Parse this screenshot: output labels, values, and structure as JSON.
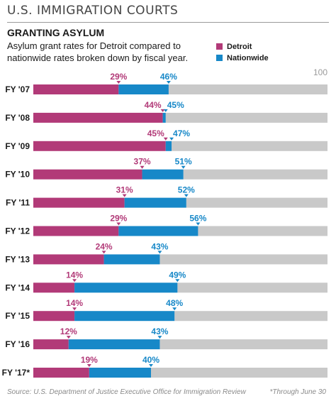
{
  "header": {
    "kicker": "U.S. IMMIGRATION COURTS",
    "title": "GRANTING ASYLUM",
    "subtitle": "Asylum grant rates for Detroit compared to nationwide rates broken down by fiscal year."
  },
  "footer": {
    "source": "Source: U.S. Department of Justice Executive Office for Immigration Review",
    "note": "*Through June 30"
  },
  "colors": {
    "detroit": "#b23a78",
    "nationwide": "#1788c8",
    "rest": "#c9c9c9",
    "max_label": "#9a9a9a"
  },
  "chart_data": {
    "type": "bar",
    "orientation": "horizontal",
    "categories": [
      "FY '07",
      "FY '08",
      "FY '09",
      "FY '10",
      "FY '11",
      "FY '12",
      "FY '13",
      "FY '14",
      "FY '15",
      "FY '16",
      "FY '17*"
    ],
    "series": [
      {
        "name": "Detroit",
        "values": [
          29,
          44,
          45,
          37,
          31,
          29,
          24,
          14,
          14,
          12,
          19
        ],
        "labels": [
          "29%",
          "44%",
          "45%",
          "37%",
          "31%",
          "29%",
          "24%",
          "14%",
          "14%",
          "12%",
          "19%"
        ]
      },
      {
        "name": "Nationwide",
        "values": [
          46,
          45,
          47,
          51,
          52,
          56,
          43,
          49,
          48,
          43,
          40
        ],
        "labels": [
          "46%",
          "45%",
          "47%",
          "51%",
          "52%",
          "56%",
          "43%",
          "49%",
          "48%",
          "43%",
          "40%"
        ]
      }
    ],
    "xlim": [
      0,
      100
    ],
    "max_label": "100",
    "legend": "top-right",
    "grid": false
  }
}
